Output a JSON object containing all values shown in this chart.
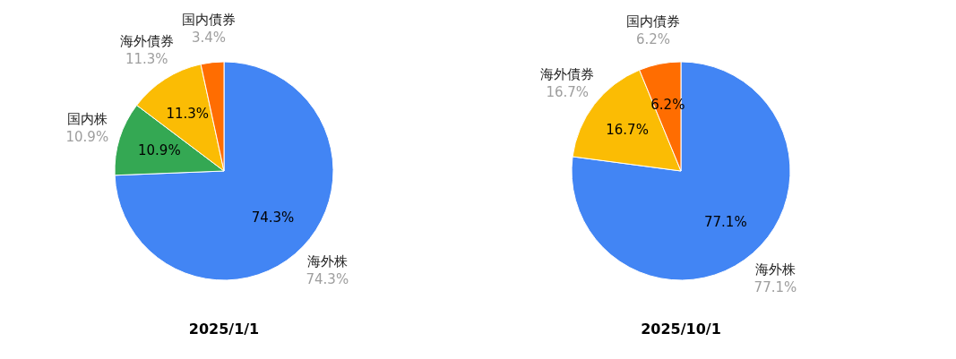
{
  "chart_data": [
    {
      "type": "pie",
      "title": "2025/1/1",
      "categories": [
        "海外株",
        "国内株",
        "海外債券",
        "国内債券"
      ],
      "values": [
        74.3,
        10.9,
        11.3,
        3.4
      ],
      "colors": [
        "#4285f4",
        "#34a853",
        "#fbbc04",
        "#ff6d01"
      ],
      "value_labels": [
        "74.3%",
        "10.9%",
        "11.3%",
        "3.4%"
      ]
    },
    {
      "type": "pie",
      "title": "2025/10/1",
      "categories": [
        "海外株",
        "海外債券",
        "国内債券"
      ],
      "values": [
        77.1,
        16.7,
        6.2
      ],
      "colors": [
        "#4285f4",
        "#fbbc04",
        "#ff6d01"
      ],
      "value_labels": [
        "77.1%",
        "16.7%",
        "6.2%"
      ]
    }
  ]
}
